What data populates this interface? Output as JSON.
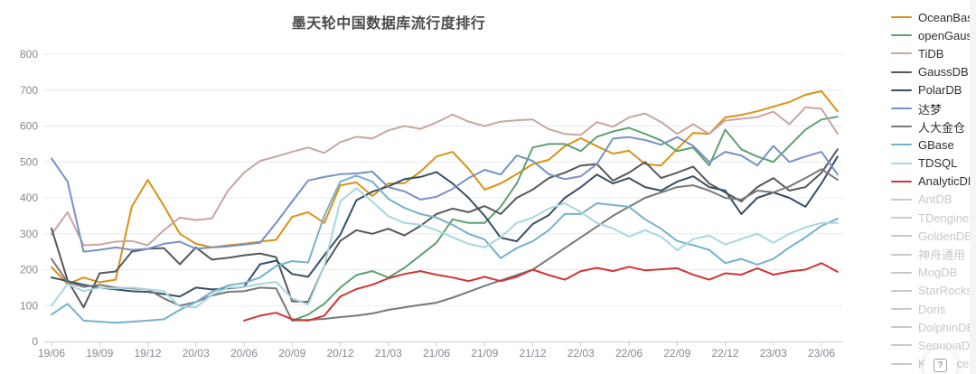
{
  "title": "墨天轮中国数据库流行度排行",
  "help_button": {
    "icon": "?"
  },
  "colors": {
    "grid": "#e5ebf3",
    "axis": "#c9ccd1",
    "tick_label": "#85898f",
    "title": "#4b4b4b",
    "legend_disabled": "#c5c8cc"
  },
  "legend": {
    "position": "right",
    "disabled_items": [
      "AntDB",
      "TDengine",
      "GoldenDB",
      "神舟通用",
      "MogDB",
      "StarRocks",
      "Doris",
      "DolphinDB",
      "SequoiaDB",
      "Kyligence"
    ]
  },
  "chart_data": {
    "type": "line",
    "title": "墨天轮中国数据库流行度排行",
    "xlabel": "",
    "ylabel": "",
    "ylim": [
      0,
      800
    ],
    "y_ticks": [
      0,
      100,
      200,
      300,
      400,
      500,
      600,
      700,
      800
    ],
    "grid": true,
    "legend_position": "right",
    "x_tick_interval": 3,
    "x": [
      "19/06",
      "19/07",
      "19/08",
      "19/09",
      "19/10",
      "19/11",
      "19/12",
      "20/01",
      "20/02",
      "20/03",
      "20/04",
      "20/05",
      "20/06",
      "20/07",
      "20/08",
      "20/09",
      "20/10",
      "20/11",
      "20/12",
      "21/01",
      "21/02",
      "21/03",
      "21/04",
      "21/05",
      "21/06",
      "21/07",
      "21/08",
      "21/09",
      "21/10",
      "21/11",
      "21/12",
      "22/01",
      "22/02",
      "22/03",
      "22/04",
      "22/05",
      "22/06",
      "22/07",
      "22/08",
      "22/09",
      "22/10",
      "22/11",
      "22/12",
      "23/01",
      "23/02",
      "23/03",
      "23/04",
      "23/05",
      "23/06",
      "23/07"
    ],
    "series": [
      {
        "name": "OceanBase",
        "color": "#dc9114",
        "values": [
          207,
          160,
          178,
          165,
          172,
          375,
          450,
          378,
          300,
          272,
          262,
          268,
          272,
          278,
          283,
          347,
          360,
          330,
          435,
          443,
          405,
          440,
          441,
          473,
          515,
          528,
          481,
          423,
          440,
          466,
          494,
          506,
          544,
          566,
          544,
          523,
          531,
          494,
          490,
          536,
          581,
          578,
          624,
          631,
          641,
          654,
          667,
          687,
          697,
          641
        ]
      },
      {
        "name": "openGauss",
        "color": "#5fa06f",
        "values": [
          null,
          null,
          null,
          null,
          null,
          null,
          null,
          null,
          null,
          null,
          null,
          null,
          null,
          null,
          null,
          58,
          75,
          105,
          150,
          185,
          196,
          178,
          205,
          240,
          275,
          340,
          330,
          330,
          375,
          440,
          540,
          550,
          550,
          530,
          570,
          585,
          595,
          578,
          560,
          530,
          540,
          490,
          590,
          535,
          515,
          500,
          545,
          590,
          618,
          626
        ]
      },
      {
        "name": "TiDB",
        "color": "#c8a5a0",
        "values": [
          298,
          360,
          268,
          270,
          278,
          280,
          268,
          310,
          345,
          338,
          343,
          420,
          470,
          503,
          515,
          528,
          540,
          525,
          555,
          570,
          565,
          588,
          600,
          592,
          610,
          632,
          612,
          600,
          612,
          616,
          618,
          591,
          578,
          575,
          611,
          598,
          624,
          635,
          611,
          578,
          605,
          578,
          615,
          620,
          625,
          640,
          605,
          652,
          648,
          578
        ]
      },
      {
        "name": "GaussDB",
        "color": "#54585c",
        "values": [
          315,
          170,
          95,
          190,
          195,
          250,
          258,
          260,
          215,
          262,
          228,
          233,
          240,
          245,
          235,
          112,
          110,
          210,
          280,
          310,
          300,
          314,
          295,
          322,
          355,
          370,
          360,
          377,
          355,
          400,
          423,
          455,
          470,
          490,
          494,
          448,
          470,
          500,
          455,
          470,
          487,
          440,
          415,
          390,
          430,
          455,
          420,
          430,
          470,
          535
        ]
      },
      {
        "name": "PolarDB",
        "color": "#384f66",
        "values": [
          178,
          168,
          158,
          150,
          145,
          140,
          138,
          132,
          125,
          150,
          145,
          148,
          152,
          215,
          225,
          188,
          180,
          240,
          297,
          393,
          417,
          432,
          452,
          458,
          472,
          440,
          400,
          350,
          289,
          279,
          327,
          352,
          400,
          430,
          465,
          440,
          455,
          430,
          420,
          445,
          460,
          430,
          420,
          355,
          400,
          415,
          400,
          375,
          440,
          515
        ]
      },
      {
        "name": "达梦",
        "color": "#7692c6",
        "values": [
          510,
          445,
          250,
          255,
          262,
          255,
          258,
          272,
          278,
          258,
          262,
          265,
          270,
          275,
          330,
          390,
          448,
          458,
          466,
          468,
          473,
          430,
          418,
          395,
          403,
          425,
          455,
          478,
          465,
          518,
          503,
          466,
          452,
          460,
          494,
          565,
          569,
          561,
          548,
          569,
          545,
          500,
          528,
          518,
          490,
          545,
          500,
          515,
          528,
          465
        ]
      },
      {
        "name": "人大金仓",
        "color": "#787878",
        "values": [
          230,
          165,
          152,
          158,
          150,
          148,
          145,
          120,
          100,
          110,
          128,
          138,
          140,
          150,
          148,
          58,
          60,
          63,
          68,
          72,
          78,
          88,
          95,
          102,
          108,
          122,
          138,
          155,
          170,
          185,
          200,
          230,
          260,
          290,
          320,
          350,
          375,
          400,
          415,
          430,
          435,
          420,
          400,
          395,
          420,
          415,
          432,
          455,
          480,
          450
        ]
      },
      {
        "name": "GBase",
        "color": "#76b1cd",
        "values": [
          75,
          105,
          58,
          55,
          52,
          55,
          58,
          62,
          88,
          110,
          138,
          156,
          163,
          178,
          210,
          224,
          220,
          350,
          445,
          462,
          445,
          397,
          372,
          355,
          345,
          325,
          300,
          284,
          232,
          260,
          279,
          310,
          355,
          355,
          385,
          380,
          375,
          340,
          314,
          280,
          268,
          255,
          218,
          230,
          214,
          230,
          262,
          290,
          322,
          342
        ]
      },
      {
        "name": "TDSQL",
        "color": "#a7d7de",
        "values": [
          100,
          160,
          140,
          150,
          148,
          150,
          145,
          140,
          97,
          95,
          130,
          150,
          152,
          160,
          166,
          120,
          103,
          210,
          390,
          427,
          389,
          349,
          330,
          325,
          310,
          290,
          272,
          262,
          290,
          330,
          345,
          370,
          385,
          360,
          330,
          315,
          292,
          310,
          292,
          254,
          285,
          295,
          270,
          285,
          300,
          275,
          300,
          318,
          330,
          330
        ]
      },
      {
        "name": "AnalyticDB",
        "color": "#d23431",
        "values": [
          null,
          null,
          null,
          null,
          null,
          null,
          null,
          null,
          null,
          null,
          null,
          null,
          58,
          72,
          80,
          62,
          58,
          72,
          125,
          146,
          158,
          176,
          188,
          196,
          186,
          178,
          168,
          180,
          168,
          180,
          200,
          185,
          172,
          196,
          205,
          196,
          208,
          198,
          201,
          204,
          186,
          172,
          190,
          186,
          204,
          186,
          195,
          200,
          218,
          194
        ]
      }
    ]
  }
}
